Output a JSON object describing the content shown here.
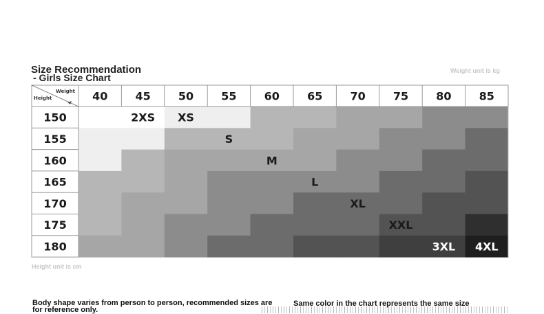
{
  "title": "Size Recommendation",
  "subtitle": "- Girls Size Chart",
  "weight_unit": "Weight unit is kg",
  "height_unit": "Height unit is cm",
  "corner": {
    "weight_label": "Weight",
    "height_label": "Height"
  },
  "weights": [
    "40",
    "45",
    "50",
    "55",
    "60",
    "65",
    "70",
    "75",
    "80",
    "85"
  ],
  "heights": [
    "150",
    "155",
    "160",
    "165",
    "170",
    "175",
    "180"
  ],
  "size_labels": [
    {
      "text": "2XS",
      "row": 0,
      "col": 1
    },
    {
      "text": "XS",
      "row": 0,
      "col": 2
    },
    {
      "text": "S",
      "row": 1,
      "col": 3
    },
    {
      "text": "M",
      "row": 2,
      "col": 4
    },
    {
      "text": "L",
      "row": 3,
      "col": 5
    },
    {
      "text": "XL",
      "row": 4,
      "col": 6
    },
    {
      "text": "XXL",
      "row": 5,
      "col": 7
    },
    {
      "text": "3XL",
      "row": 6,
      "col": 8
    },
    {
      "text": "4XL",
      "row": 6,
      "col": 9
    }
  ],
  "grid_colors": [
    [
      "#ffffff",
      "#ffffff",
      "#efefef",
      "#efefef",
      "#b6b6b6",
      "#b6b6b6",
      "#a6a6a6",
      "#a6a6a6",
      "#8c8c8c",
      "#8c8c8c"
    ],
    [
      "#efefef",
      "#efefef",
      "#b6b6b6",
      "#b6b6b6",
      "#b6b6b6",
      "#a6a6a6",
      "#a6a6a6",
      "#8c8c8c",
      "#8c8c8c",
      "#6c6c6c"
    ],
    [
      "#efefef",
      "#b6b6b6",
      "#a6a6a6",
      "#a6a6a6",
      "#a6a6a6",
      "#a6a6a6",
      "#8c8c8c",
      "#8c8c8c",
      "#6c6c6c",
      "#6c6c6c"
    ],
    [
      "#b6b6b6",
      "#b6b6b6",
      "#a6a6a6",
      "#8c8c8c",
      "#8c8c8c",
      "#8c8c8c",
      "#8c8c8c",
      "#6c6c6c",
      "#6c6c6c",
      "#535353"
    ],
    [
      "#b6b6b6",
      "#a6a6a6",
      "#a6a6a6",
      "#8c8c8c",
      "#8c8c8c",
      "#6c6c6c",
      "#6c6c6c",
      "#6c6c6c",
      "#535353",
      "#535353"
    ],
    [
      "#b6b6b6",
      "#a6a6a6",
      "#8c8c8c",
      "#8c8c8c",
      "#6c6c6c",
      "#6c6c6c",
      "#6c6c6c",
      "#535353",
      "#535353",
      "#2f2f2f"
    ],
    [
      "#a6a6a6",
      "#a6a6a6",
      "#8c8c8c",
      "#6c6c6c",
      "#6c6c6c",
      "#535353",
      "#535353",
      "#3f3f3f",
      "#3f3f3f",
      "#1e1e1e"
    ]
  ],
  "light_label_sizes": [
    "3XL",
    "4XL"
  ],
  "footnote_left": "Body shape varies from person to person, recommended sizes are for reference only.",
  "footnote_right": "Same color in the chart represents the same size"
}
